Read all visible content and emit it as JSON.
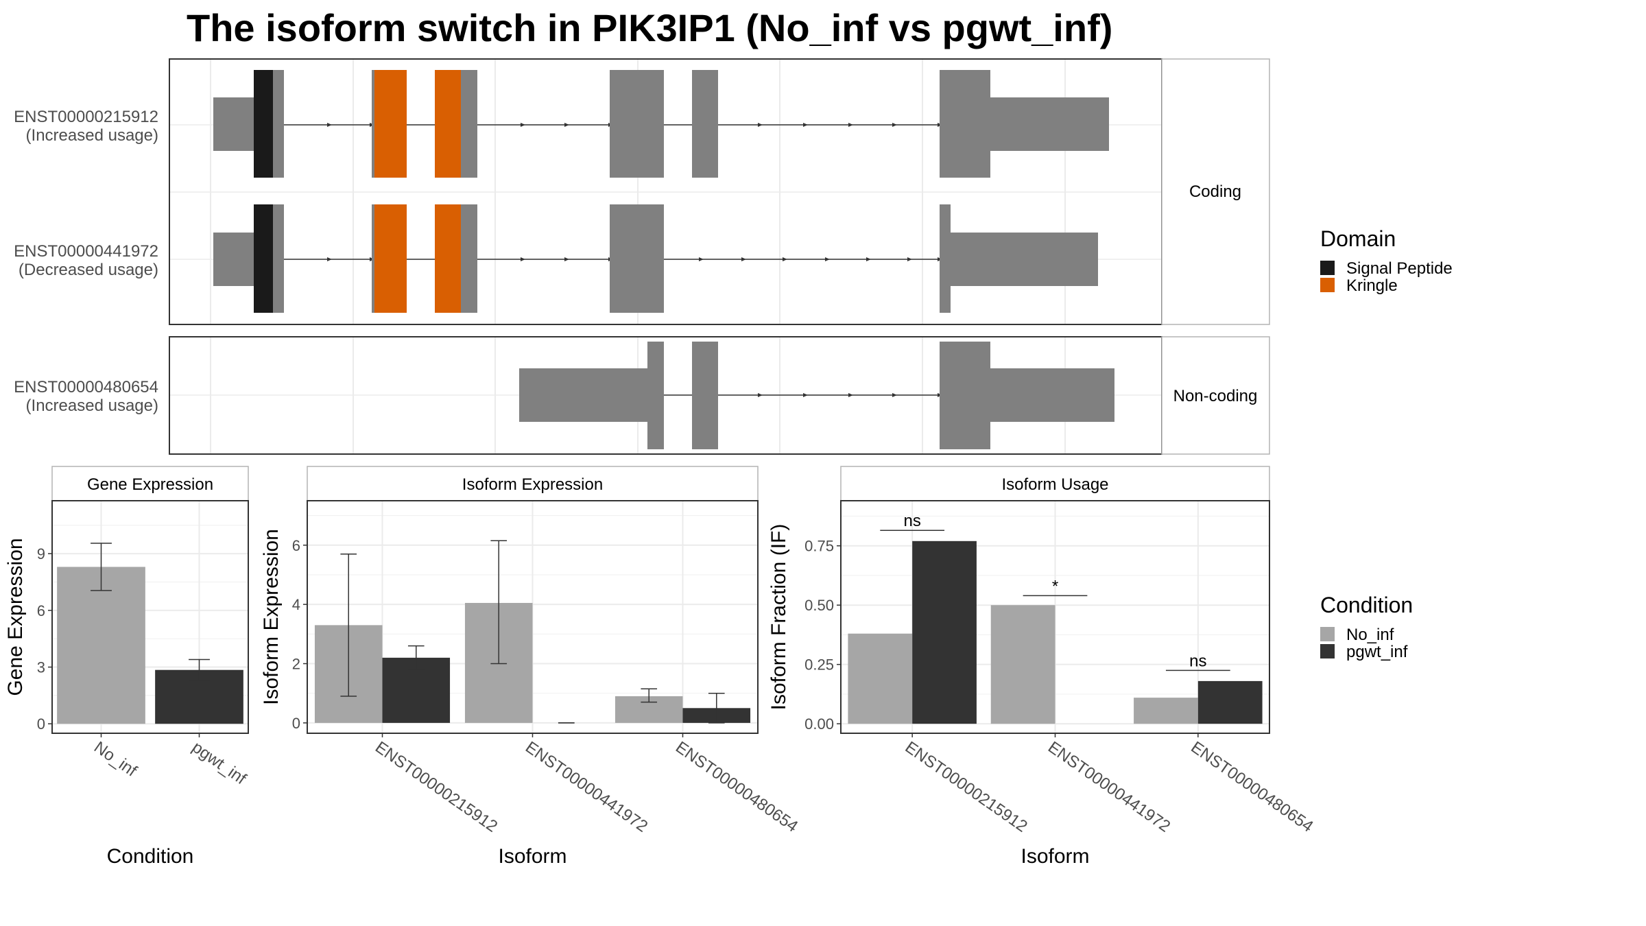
{
  "title": "The isoform switch in PIK3IP1 (No_inf vs pgwt_inf)",
  "colors": {
    "panel_border": "#333333",
    "strip_border": "#b3b3b3",
    "grid": "#ebebeb",
    "exon": "#808080",
    "signal_peptide": "#1a1a1a",
    "kringle": "#d95f02",
    "no_inf": "#a6a6a6",
    "pgwt_inf": "#333333"
  },
  "structure": {
    "coding_strip": "Coding",
    "noncoding_strip": "Non-coding",
    "transcripts": [
      {
        "id": "ENST00000215912",
        "usage": "(Increased usage)",
        "group": "coding"
      },
      {
        "id": "ENST00000441972",
        "usage": "(Decreased usage)",
        "group": "coding"
      },
      {
        "id": "ENST00000480654",
        "usage": "(Increased usage)",
        "group": "noncoding"
      }
    ]
  },
  "domain_legend": {
    "title": "Domain",
    "items": [
      {
        "label": "Signal Peptide",
        "color": "#1a1a1a"
      },
      {
        "label": "Kringle",
        "color": "#d95f02"
      }
    ]
  },
  "condition_legend": {
    "title": "Condition",
    "items": [
      {
        "label": "No_inf",
        "color": "#a6a6a6"
      },
      {
        "label": "pgwt_inf",
        "color": "#333333"
      }
    ]
  },
  "chart_data": [
    {
      "type": "bar",
      "strip": "Gene Expression",
      "xlabel": "Condition",
      "ylabel": "Gene Expression",
      "categories": [
        "No_inf",
        "pgwt_inf"
      ],
      "values": [
        8.3,
        2.85
      ],
      "error_low": [
        7.05,
        2.3
      ],
      "error_high": [
        9.55,
        3.4
      ],
      "ylim": [
        -0.5,
        11.8
      ],
      "yticks": [
        0,
        3,
        6,
        9
      ],
      "ytick_labels": [
        "0",
        "3",
        "6",
        "9"
      ]
    },
    {
      "type": "bar",
      "strip": "Isoform Expression",
      "xlabel": "Isoform",
      "ylabel": "Isoform Expression",
      "categories": [
        "ENST00000215912",
        "ENST00000441972",
        "ENST00000480654"
      ],
      "series": [
        {
          "name": "No_inf",
          "values": [
            3.3,
            4.05,
            0.9
          ],
          "error_low": [
            0.9,
            2.0,
            0.7
          ],
          "error_high": [
            5.7,
            6.15,
            1.15
          ]
        },
        {
          "name": "pgwt_inf",
          "values": [
            2.2,
            0.0,
            0.5
          ],
          "error_low": [
            1.8,
            0.0,
            0.0
          ],
          "error_high": [
            2.6,
            0.0,
            1.0
          ]
        }
      ],
      "ylim": [
        -0.35,
        7.5
      ],
      "yticks": [
        0,
        2,
        4,
        6
      ],
      "ytick_labels": [
        "0",
        "2",
        "4",
        "6"
      ]
    },
    {
      "type": "bar",
      "strip": "Isoform Usage",
      "xlabel": "Isoform",
      "ylabel": "Isoform Fraction (IF)",
      "categories": [
        "ENST00000215912",
        "ENST00000441972",
        "ENST00000480654"
      ],
      "series": [
        {
          "name": "No_inf",
          "values": [
            0.38,
            0.5,
            0.11
          ]
        },
        {
          "name": "pgwt_inf",
          "values": [
            0.77,
            0.0,
            0.18
          ]
        }
      ],
      "significance": [
        "ns",
        "*",
        "ns"
      ],
      "significance_y": [
        0.815,
        0.54,
        0.225
      ],
      "ylim": [
        -0.04,
        0.94
      ],
      "yticks": [
        0,
        0.25,
        0.5,
        0.75
      ],
      "ytick_labels": [
        "0.00",
        "0.25",
        "0.50",
        "0.75"
      ]
    }
  ]
}
